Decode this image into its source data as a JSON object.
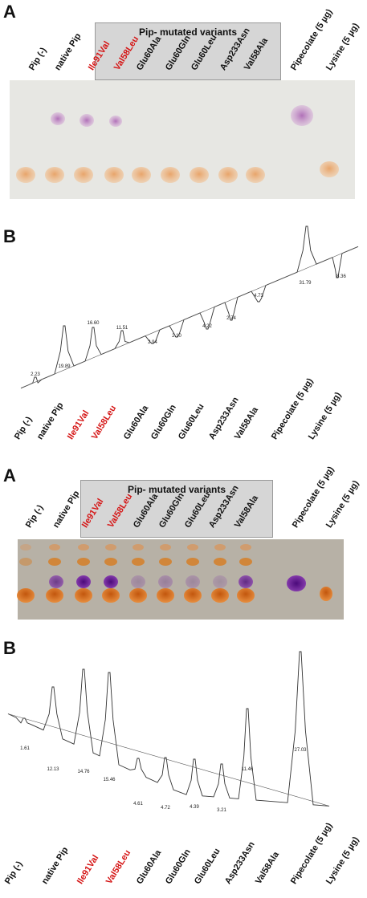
{
  "figure": {
    "panel_A1": "A",
    "panel_B1": "B",
    "panel_A2": "A",
    "panel_B2": "B",
    "box_title_1": "Pip- mutated variants",
    "box_title_2": "Pip- mutated variants",
    "lanes_top": [
      "Pip (-)",
      "native Pip",
      "Ile91Val",
      "Val58Leu",
      "Glu60Ala",
      "Glu60Gln",
      "Glu60Leu",
      "Asp233Asn",
      "Val58Ala",
      "Pipecolate (5 µg)",
      "Lysine (5 µg)"
    ],
    "lanes_b1": [
      "Pip (-)",
      "native Pip",
      "Ile91Val",
      "Val58Leu",
      "Glu60Ala",
      "Glu60Gln",
      "Glu60Leu",
      "Asp233Asn",
      "Val58Ala",
      "Pipecolate (5 µg)",
      "Lysine (5 µg)"
    ],
    "lanes_a2": [
      "Pip (-)",
      "native Pip",
      "Ile91Val",
      "Val58Leu",
      "Glu60Ala",
      "Glu60Gln",
      "Glu60Leu",
      "Asp233Asn",
      "Val58Ala",
      "Pipecolate (5 µg)",
      "Lysine (5 µg)"
    ],
    "lanes_b2": [
      "Pip (-)",
      "native Pip",
      "Ile91Val",
      "Val58Leu",
      "Glu60Ala",
      "Glu60Gln",
      "Glu60Leu",
      "Asp233Asn",
      "Val58Ala",
      "Pipecolate (5 µg)",
      "Lysine (5 µg)"
    ],
    "highlight_color": "#d51515",
    "b1_peaks": [
      "2.23",
      "19.89",
      "16.60",
      "11.51",
      "2.94",
      "2.10",
      "4.22",
      "2.74",
      "4.73",
      "31.79",
      "8.36"
    ],
    "b2_peaks": [
      "1.61",
      "12.13",
      "14.76",
      "15.46",
      "4.61",
      "4.72",
      "4.39",
      "3.21",
      "11.46",
      "27.03"
    ]
  },
  "chart_data": [
    {
      "type": "line",
      "title": "",
      "xlabel": "",
      "ylabel": "",
      "categories": [
        "Pip (-)",
        "native Pip",
        "Ile91Val",
        "Val58Leu",
        "Glu60Ala",
        "Glu60Gln",
        "Glu60Leu",
        "Asp233Asn",
        "Val58Ala",
        "Pipecolate (5 µg)",
        "Lysine (5 µg)"
      ],
      "values": [
        2.23,
        19.89,
        16.6,
        11.51,
        2.94,
        2.1,
        4.22,
        2.74,
        4.73,
        31.79,
        8.36
      ]
    },
    {
      "type": "line",
      "title": "",
      "xlabel": "",
      "ylabel": "",
      "categories": [
        "Pip (-)",
        "native Pip",
        "Ile91Val",
        "Val58Leu",
        "Glu60Ala",
        "Glu60Gln",
        "Glu60Leu",
        "Asp233Asn",
        "Val58Ala",
        "Pipecolate (5 µg)"
      ],
      "values": [
        1.61,
        12.13,
        14.76,
        15.46,
        4.61,
        4.72,
        4.39,
        3.21,
        11.46,
        27.03
      ]
    }
  ]
}
